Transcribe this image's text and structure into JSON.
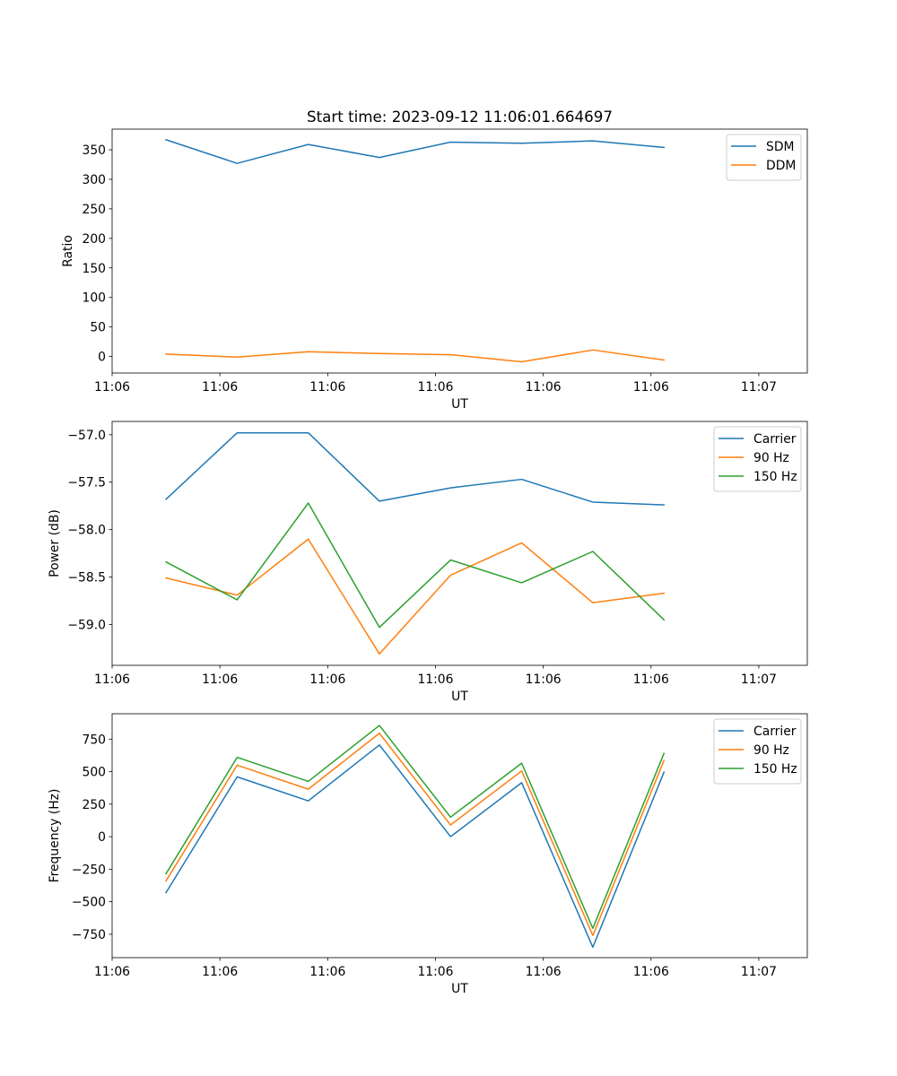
{
  "figure": {
    "title": "Start time: 2023-09-12 11:06:01.664697"
  },
  "colors": {
    "c0": "#1f77b4",
    "c1": "#ff7f0e",
    "c2": "#2ca02c"
  },
  "chart_data": [
    {
      "type": "line",
      "title": "Start time: 2023-09-12 11:06:01.664697",
      "xlabel": "UT",
      "ylabel": "Ratio",
      "xlim": [
        -0.5,
        5.95
      ],
      "ylim": [
        -28,
        385
      ],
      "x_ticks": [
        {
          "v": -0.5,
          "label": "11:06"
        },
        {
          "v": 0.5,
          "label": "11:06"
        },
        {
          "v": 1.5,
          "label": "11:06"
        },
        {
          "v": 2.5,
          "label": "11:06"
        },
        {
          "v": 3.5,
          "label": "11:06"
        },
        {
          "v": 4.5,
          "label": "11:06"
        },
        {
          "v": 5.5,
          "label": "11:07"
        }
      ],
      "y_ticks": [
        {
          "v": 0,
          "label": "0"
        },
        {
          "v": 50,
          "label": "50"
        },
        {
          "v": 100,
          "label": "100"
        },
        {
          "v": 150,
          "label": "150"
        },
        {
          "v": 200,
          "label": "200"
        },
        {
          "v": 250,
          "label": "250"
        },
        {
          "v": 300,
          "label": "300"
        },
        {
          "v": 350,
          "label": "350"
        }
      ],
      "x": [
        0,
        0.66,
        1.32,
        1.98,
        2.64,
        3.3,
        3.96,
        4.62
      ],
      "series": [
        {
          "name": "SDM",
          "color": "#1f77b4",
          "values": [
            367,
            327,
            359,
            337,
            363,
            361,
            365,
            354
          ]
        },
        {
          "name": "DDM",
          "color": "#ff7f0e",
          "values": [
            4,
            -1,
            8,
            5,
            3,
            -9,
            11,
            -6
          ]
        }
      ],
      "legend": "top-right"
    },
    {
      "type": "line",
      "title": "",
      "xlabel": "UT",
      "ylabel": "Power (dB)",
      "xlim": [
        -0.5,
        5.95
      ],
      "ylim": [
        -59.43,
        -56.86
      ],
      "x_ticks": [
        {
          "v": -0.5,
          "label": "11:06"
        },
        {
          "v": 0.5,
          "label": "11:06"
        },
        {
          "v": 1.5,
          "label": "11:06"
        },
        {
          "v": 2.5,
          "label": "11:06"
        },
        {
          "v": 3.5,
          "label": "11:06"
        },
        {
          "v": 4.5,
          "label": "11:06"
        },
        {
          "v": 5.5,
          "label": "11:07"
        }
      ],
      "y_ticks": [
        {
          "v": -59.0,
          "label": "−59.0"
        },
        {
          "v": -58.5,
          "label": "−58.5"
        },
        {
          "v": -58.0,
          "label": "−58.0"
        },
        {
          "v": -57.5,
          "label": "−57.5"
        },
        {
          "v": -57.0,
          "label": "−57.0"
        }
      ],
      "x": [
        0,
        0.66,
        1.32,
        1.98,
        2.64,
        3.3,
        3.96,
        4.62
      ],
      "series": [
        {
          "name": "Carrier",
          "color": "#1f77b4",
          "values": [
            -57.68,
            -56.98,
            -56.98,
            -57.7,
            -57.56,
            -57.47,
            -57.71,
            -57.74
          ]
        },
        {
          "name": "90 Hz",
          "color": "#ff7f0e",
          "values": [
            -58.51,
            -58.69,
            -58.1,
            -59.31,
            -58.48,
            -58.14,
            -58.77,
            -58.67
          ]
        },
        {
          "name": "150 Hz",
          "color": "#2ca02c",
          "values": [
            -58.34,
            -58.74,
            -57.72,
            -59.03,
            -58.32,
            -58.56,
            -58.23,
            -58.95
          ]
        }
      ],
      "legend": "top-right"
    },
    {
      "type": "line",
      "title": "",
      "xlabel": "UT",
      "ylabel": "Frequency (Hz)",
      "xlim": [
        -0.5,
        5.95
      ],
      "ylim": [
        -930,
        945
      ],
      "x_ticks": [
        {
          "v": -0.5,
          "label": "11:06"
        },
        {
          "v": 0.5,
          "label": "11:06"
        },
        {
          "v": 1.5,
          "label": "11:06"
        },
        {
          "v": 2.5,
          "label": "11:06"
        },
        {
          "v": 3.5,
          "label": "11:06"
        },
        {
          "v": 4.5,
          "label": "11:06"
        },
        {
          "v": 5.5,
          "label": "11:07"
        }
      ],
      "y_ticks": [
        {
          "v": -750,
          "label": "−750"
        },
        {
          "v": -500,
          "label": "−500"
        },
        {
          "v": -250,
          "label": "−250"
        },
        {
          "v": 0,
          "label": "0"
        },
        {
          "v": 250,
          "label": "250"
        },
        {
          "v": 500,
          "label": "500"
        },
        {
          "v": 750,
          "label": "750"
        }
      ],
      "x": [
        0,
        0.66,
        1.32,
        1.98,
        2.64,
        3.3,
        3.96,
        4.62
      ],
      "series": [
        {
          "name": "Carrier",
          "color": "#1f77b4",
          "values": [
            -430,
            460,
            275,
            705,
            0,
            415,
            -850,
            495
          ]
        },
        {
          "name": "90 Hz",
          "color": "#ff7f0e",
          "values": [
            -340,
            550,
            365,
            795,
            90,
            505,
            -760,
            585
          ]
        },
        {
          "name": "150 Hz",
          "color": "#2ca02c",
          "values": [
            -285,
            610,
            425,
            855,
            150,
            565,
            -705,
            640
          ]
        }
      ],
      "legend": "top-right"
    }
  ]
}
